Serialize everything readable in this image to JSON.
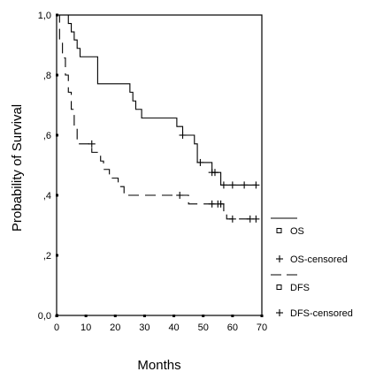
{
  "chart_data": {
    "type": "line",
    "xlabel": "Months",
    "ylabel": "Probability of Survival",
    "xlim": [
      0,
      70
    ],
    "ylim": [
      0,
      1
    ],
    "x_ticks": [
      {
        "value": 0,
        "label": "0"
      },
      {
        "value": 10,
        "label": "10"
      },
      {
        "value": 20,
        "label": "20"
      },
      {
        "value": 30,
        "label": "30"
      },
      {
        "value": 40,
        "label": "40"
      },
      {
        "value": 50,
        "label": "50"
      },
      {
        "value": 60,
        "label": "60"
      },
      {
        "value": 70,
        "label": "70"
      }
    ],
    "y_ticks": [
      {
        "value": 0.0,
        "label": "0,0"
      },
      {
        "value": 0.2,
        "label": ",2"
      },
      {
        "value": 0.4,
        "label": ",4"
      },
      {
        "value": 0.6,
        "label": ",6"
      },
      {
        "value": 0.8,
        "label": ",8"
      },
      {
        "value": 1.0,
        "label": "1,0"
      }
    ],
    "grid": false,
    "legend_position": "right",
    "legend": [
      {
        "label": "OS",
        "style": "solid-line"
      },
      {
        "label": "OS-censored",
        "style": "plus"
      },
      {
        "label": "DFS",
        "style": "dashed-line"
      },
      {
        "label": "DFS-censored",
        "style": "plus"
      }
    ],
    "series": [
      {
        "name": "OS",
        "step": true,
        "dashed": false,
        "points": [
          [
            0,
            1.0
          ],
          [
            4,
            0.972
          ],
          [
            5,
            0.944
          ],
          [
            6,
            0.917
          ],
          [
            7,
            0.889
          ],
          [
            8,
            0.861
          ],
          [
            14,
            0.771
          ],
          [
            25,
            0.743
          ],
          [
            26,
            0.714
          ],
          [
            27,
            0.686
          ],
          [
            29,
            0.657
          ],
          [
            41,
            0.629
          ],
          [
            43,
            0.6
          ],
          [
            47,
            0.571
          ],
          [
            48,
            0.509
          ],
          [
            53,
            0.476
          ],
          [
            56,
            0.434
          ],
          [
            68,
            0.434
          ]
        ],
        "censored": [
          [
            43,
            0.6
          ],
          [
            49,
            0.509
          ],
          [
            53,
            0.476
          ],
          [
            54,
            0.476
          ],
          [
            57,
            0.434
          ],
          [
            60,
            0.434
          ],
          [
            64,
            0.434
          ],
          [
            68,
            0.434
          ]
        ]
      },
      {
        "name": "DFS",
        "step": true,
        "dashed": true,
        "points": [
          [
            0,
            1.0
          ],
          [
            1,
            0.914
          ],
          [
            2,
            0.857
          ],
          [
            3,
            0.8
          ],
          [
            4,
            0.743
          ],
          [
            5,
            0.686
          ],
          [
            6,
            0.629
          ],
          [
            7,
            0.571
          ],
          [
            12,
            0.543
          ],
          [
            15,
            0.514
          ],
          [
            16,
            0.486
          ],
          [
            18,
            0.457
          ],
          [
            21,
            0.429
          ],
          [
            23,
            0.4
          ],
          [
            45,
            0.371
          ],
          [
            57,
            0.343
          ],
          [
            58,
            0.321
          ],
          [
            68,
            0.321
          ]
        ],
        "censored": [
          [
            12,
            0.571
          ],
          [
            42,
            0.4
          ],
          [
            53,
            0.371
          ],
          [
            55,
            0.371
          ],
          [
            56,
            0.371
          ],
          [
            60,
            0.321
          ],
          [
            66,
            0.321
          ],
          [
            68,
            0.321
          ]
        ]
      }
    ]
  }
}
